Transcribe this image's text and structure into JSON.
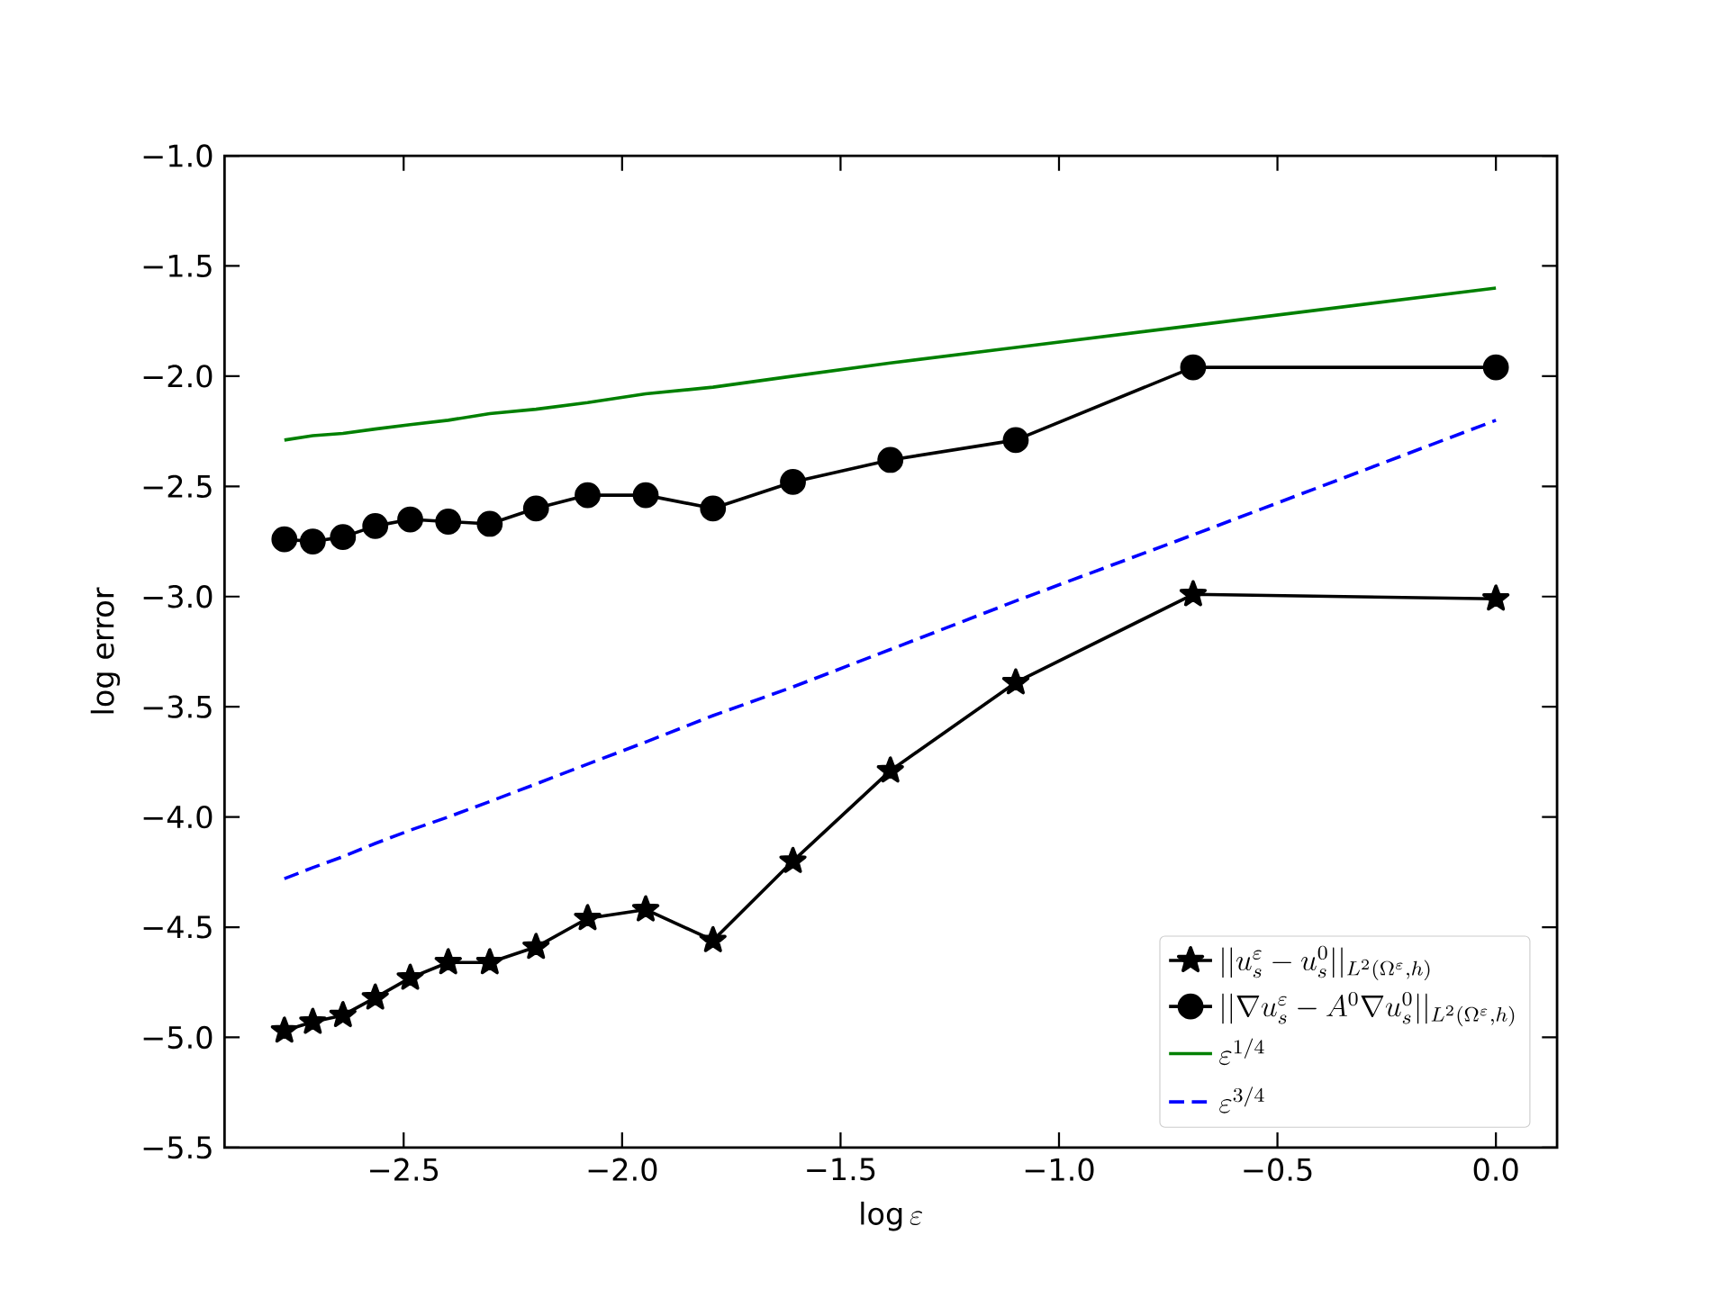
{
  "chart_data": {
    "type": "line",
    "xlabel": "\\log \\varepsilon",
    "ylabel": "log error",
    "x": [
      -2.773,
      -2.708,
      -2.639,
      -2.565,
      -2.485,
      -2.398,
      -2.303,
      -2.197,
      -2.079,
      -1.946,
      -1.792,
      -1.609,
      -1.386,
      -1.099,
      -0.693,
      0
    ],
    "series": [
      {
        "name": "||u_s^\\varepsilon - u_s^0||_{L^2(\\Omega^\\varepsilon,h)}",
        "color": "#000000",
        "marker": "star",
        "line_style": "solid",
        "values": [
          -4.97,
          -4.93,
          -4.9,
          -4.82,
          -4.73,
          -4.66,
          -4.66,
          -4.59,
          -4.46,
          -4.42,
          -4.56,
          -4.2,
          -3.79,
          -3.39,
          -2.99,
          -3.01
        ]
      },
      {
        "name": "||\\nabla u_s^\\varepsilon - A^0\\nabla u_s^0||_{L^2(\\Omega^\\varepsilon,h)}",
        "color": "#000000",
        "marker": "circle",
        "line_style": "solid",
        "values": [
          -2.74,
          -2.75,
          -2.73,
          -2.68,
          -2.65,
          -2.66,
          -2.67,
          -2.6,
          -2.54,
          -2.54,
          -2.6,
          -2.48,
          -2.38,
          -2.29,
          -1.96,
          -1.96
        ]
      },
      {
        "name": "\\varepsilon^{1/4}",
        "color": "#008000",
        "marker": "none",
        "line_style": "solid",
        "values": [
          -2.29,
          -2.27,
          -2.26,
          -2.24,
          -2.22,
          -2.2,
          -2.17,
          -2.15,
          -2.12,
          -2.08,
          -2.05,
          -2.0,
          -1.94,
          -1.87,
          -1.77,
          -1.6
        ]
      },
      {
        "name": "\\varepsilon^{3/4}",
        "color": "#0000ff",
        "marker": "none",
        "line_style": "dashed",
        "values": [
          -4.28,
          -4.23,
          -4.18,
          -4.12,
          -4.06,
          -4.0,
          -3.93,
          -3.85,
          -3.76,
          -3.66,
          -3.54,
          -3.41,
          -3.24,
          -3.02,
          -2.72,
          -2.2
        ]
      }
    ],
    "xlim": [
      -2.91,
      0.14
    ],
    "ylim": [
      -5.5,
      -1.0
    ],
    "xticks": [
      {
        "value": -2.5,
        "label": "−2.5"
      },
      {
        "value": -2.0,
        "label": "−2.0"
      },
      {
        "value": -1.5,
        "label": "−1.5"
      },
      {
        "value": -1.0,
        "label": "−1.0"
      },
      {
        "value": -0.5,
        "label": "−0.5"
      },
      {
        "value": 0.0,
        "label": "0.0"
      }
    ],
    "yticks": [
      {
        "value": -5.5,
        "label": "−5.5"
      },
      {
        "value": -5.0,
        "label": "−5.0"
      },
      {
        "value": -4.5,
        "label": "−4.5"
      },
      {
        "value": -4.0,
        "label": "−4.0"
      },
      {
        "value": -3.5,
        "label": "−3.5"
      },
      {
        "value": -3.0,
        "label": "−3.0"
      },
      {
        "value": -2.5,
        "label": "−2.5"
      },
      {
        "value": -2.0,
        "label": "−2.0"
      },
      {
        "value": -1.5,
        "label": "−1.5"
      },
      {
        "value": -1.0,
        "label": "−1.0"
      }
    ],
    "legend": "bottom right",
    "grid": false
  }
}
